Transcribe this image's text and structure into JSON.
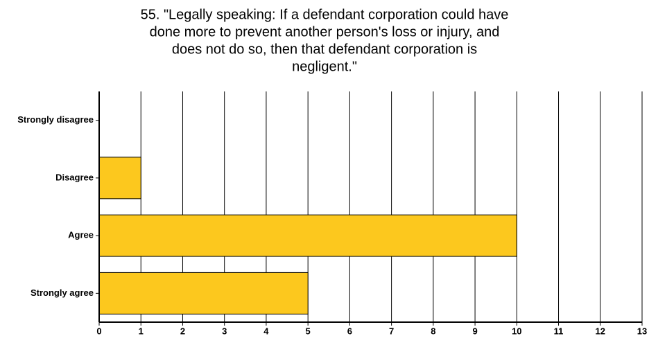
{
  "chart_data": {
    "type": "bar",
    "orientation": "horizontal",
    "title": [
      "55. \"Legally speaking: If a defendant corporation could have",
      "done more to prevent another person's loss or injury, and",
      "does not do so, then that defendant corporation is",
      "negligent.\""
    ],
    "categories": [
      "Strongly disagree",
      "Disagree",
      "Agree",
      "Strongly agree"
    ],
    "values": [
      0,
      1,
      10,
      5
    ],
    "color": "#fcc81e",
    "xlim": [
      0,
      13
    ],
    "xticks": [
      0,
      1,
      2,
      3,
      4,
      5,
      6,
      7,
      8,
      9,
      10,
      11,
      12,
      13
    ],
    "grid": true
  }
}
